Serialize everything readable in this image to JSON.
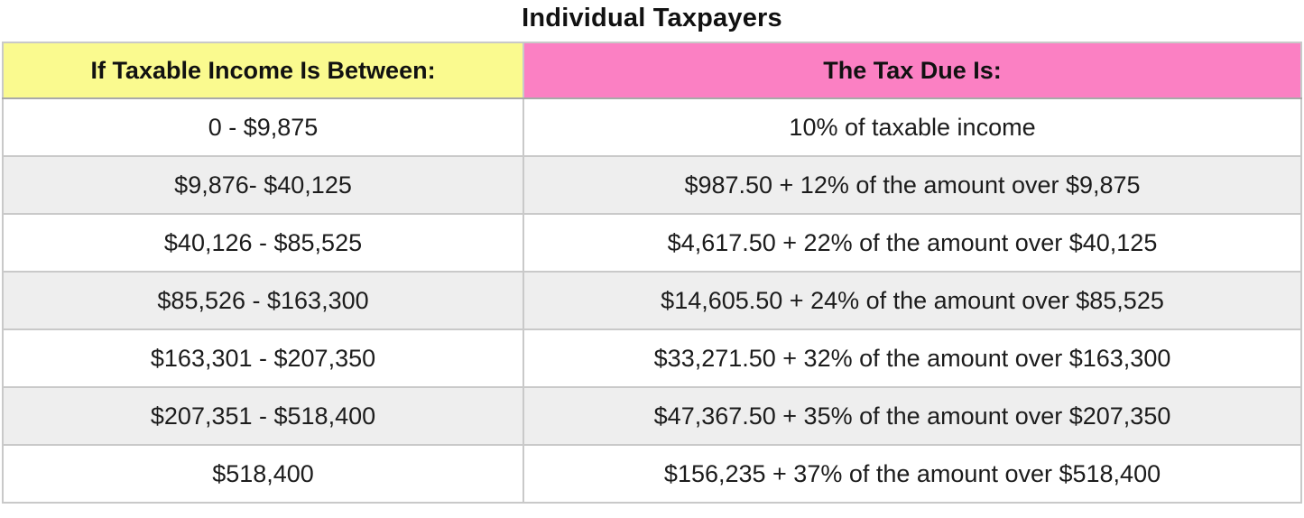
{
  "title": "Individual Taxpayers",
  "chart_data": {
    "type": "table",
    "title": "Individual Taxpayers",
    "columns": [
      "If Taxable Income Is Between:",
      "The Tax Due Is:"
    ],
    "rows": [
      {
        "income": "0 - $9,875",
        "tax": "10% of taxable income"
      },
      {
        "income": "$9,876- $40,125",
        "tax": "$987.50 + 12% of the amount over $9,875"
      },
      {
        "income": "$40,126 - $85,525",
        "tax": "$4,617.50 + 22% of the amount over $40,125"
      },
      {
        "income": "$85,526 - $163,300",
        "tax": "$14,605.50 + 24% of the amount over $85,525"
      },
      {
        "income": "$163,301 - $207,350",
        "tax": "$33,271.50 + 32% of the amount over $163,300"
      },
      {
        "income": "$207,351 - $518,400",
        "tax": "$47,367.50 + 35% of the amount over $207,350"
      },
      {
        "income": "$518,400",
        "tax": "$156,235 + 37% of the amount over $518,400"
      }
    ]
  },
  "table": {
    "header_income": "If Taxable Income Is Between:",
    "header_tax": "The Tax Due Is:"
  },
  "colors": {
    "header_income_bg": "#FAFA8F",
    "header_tax_bg": "#FB80C3",
    "row_bg": "#FFFFFF",
    "row_alt_bg": "#EEEEEE",
    "outer_border": "#8E8E8E",
    "inner_border": "#C9C9C9",
    "text": "#1C1C1C"
  }
}
